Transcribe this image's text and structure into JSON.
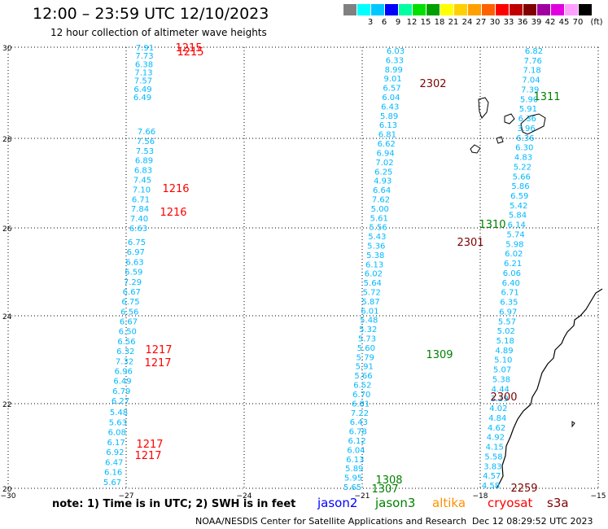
{
  "header": {
    "title": "12:00 – 23:59 UTC 12/10/2023",
    "subtitle": "12 hour collection of altimeter wave heights"
  },
  "legend": {
    "unit": "(ft)",
    "bins": [
      {
        "label": "",
        "color": "#808080"
      },
      {
        "label": "3",
        "color": "#00ffff"
      },
      {
        "label": "6",
        "color": "#00c8ff"
      },
      {
        "label": "9",
        "color": "#0000ff"
      },
      {
        "label": "12",
        "color": "#00ffa0"
      },
      {
        "label": "15",
        "color": "#00e000"
      },
      {
        "label": "18",
        "color": "#00a000"
      },
      {
        "label": "21",
        "color": "#ffff00"
      },
      {
        "label": "24",
        "color": "#ffd000"
      },
      {
        "label": "27",
        "color": "#ffa000"
      },
      {
        "label": "30",
        "color": "#ff6000"
      },
      {
        "label": "33",
        "color": "#ff0000"
      },
      {
        "label": "36",
        "color": "#c00000"
      },
      {
        "label": "39",
        "color": "#800000"
      },
      {
        "label": "42",
        "color": "#a000a0"
      },
      {
        "label": "45",
        "color": "#e000e0"
      },
      {
        "label": "70",
        "color": "#ffa0ff"
      },
      {
        "label": "",
        "color": "#000000"
      }
    ]
  },
  "axes": {
    "lon_ticks": [
      "−30",
      "−27",
      "−24",
      "−21",
      "−18",
      "−15"
    ],
    "lat_ticks": [
      "30",
      "28",
      "26",
      "24",
      "22",
      "20"
    ]
  },
  "tracks": {
    "west_1": {
      "values": [
        "7.91",
        "7.73",
        "6.38",
        "7.13",
        "7.57",
        "6.49",
        "6.49"
      ],
      "color": "#00b8ff"
    },
    "west_2": {
      "values": [
        "7.66",
        "7.56",
        "7.53",
        "6.89",
        "6.83",
        "7.45",
        "7.10",
        "6.71",
        "7.84",
        "7.40",
        "6.63"
      ],
      "color": "#00b8ff"
    },
    "west_3": {
      "values": [
        "6.75",
        "6.97",
        "6.63",
        "6.59",
        "7.29",
        "6.67",
        "6.75",
        "6.56",
        "6.67",
        "6.50",
        "6.56",
        "6.32",
        "7.32",
        "6.96",
        "6.49",
        "6.79",
        "6.27"
      ],
      "color": "#00b8ff"
    },
    "west_4": {
      "values": [
        "5.48",
        "5.63",
        "6.08",
        "6.17",
        "6.92",
        "6.47",
        "6.16",
        "5.67"
      ],
      "color": "#00b8ff"
    },
    "mid_1": {
      "values": [
        "6.03",
        "6.33",
        "8.99",
        "9.01",
        "6.57",
        "6.04",
        "6.43",
        "5.89",
        "6.13",
        "6.81",
        "6.62",
        "6.94",
        "7.02",
        "6.25",
        "4.93",
        "6.64",
        "7.62",
        "5.00",
        "5.61",
        "5.56",
        "5.43",
        "5.36",
        "5.38",
        "6.13",
        "6.02",
        "5.64",
        "5.72",
        "5.87",
        "6.01",
        "5.48",
        "5.32",
        "5.73",
        "5.60",
        "5.79",
        "5.91",
        "5.66",
        "6.52",
        "6.70",
        "6.81",
        "7.22",
        "6.43",
        "6.78",
        "6.12",
        "6.04",
        "6.13",
        "5.89",
        "5.95",
        "5.65"
      ],
      "color": "#00b8ff"
    },
    "mid_2": {
      "values": [
        "6.82",
        "7.76",
        "7.18",
        "7.04",
        "7.39",
        "5.90",
        "5.91",
        "6.36",
        "3.96",
        "6.36",
        "6.30",
        "4.83",
        "5.22",
        "5.66",
        "5.86",
        "6.59",
        "5.42",
        "5.84",
        "6.14",
        "5.74",
        "5.98",
        "6.02",
        "6.21",
        "6.06",
        "6.40",
        "6.71",
        "6.35",
        "6.97",
        "5.57",
        "5.02",
        "5.18",
        "4.89",
        "5.10",
        "5.07",
        "5.38",
        "4.44",
        "3.39",
        "4.02",
        "4.84",
        "4.62",
        "4.92",
        "4.15",
        "5.58",
        "3.83",
        "4.57",
        "4.58"
      ],
      "color": "#00b8ff"
    }
  },
  "time_labels": [
    {
      "text": "1215",
      "color": "#ff0000"
    },
    {
      "text": "1215",
      "color": "#ff0000"
    },
    {
      "text": "1216",
      "color": "#ff0000"
    },
    {
      "text": "1216",
      "color": "#ff0000"
    },
    {
      "text": "1217",
      "color": "#ff0000"
    },
    {
      "text": "1217",
      "color": "#ff0000"
    },
    {
      "text": "1217",
      "color": "#ff0000"
    },
    {
      "text": "1217",
      "color": "#ff0000"
    },
    {
      "text": "2302",
      "color": "#800000"
    },
    {
      "text": "1311",
      "color": "#008000"
    },
    {
      "text": "1310",
      "color": "#008000"
    },
    {
      "text": "2301",
      "color": "#800000"
    },
    {
      "text": "1309",
      "color": "#008000"
    },
    {
      "text": "2300",
      "color": "#800000"
    },
    {
      "text": "1308",
      "color": "#008000"
    },
    {
      "text": "1307",
      "color": "#008000"
    },
    {
      "text": "2259",
      "color": "#800000"
    }
  ],
  "footer": {
    "note": "note:  1) Time is in UTC;  2) SWH is in feet",
    "satellites": [
      {
        "name": "jason2",
        "color": "#0000ff"
      },
      {
        "name": "jason3",
        "color": "#008000"
      },
      {
        "name": "altika",
        "color": "#ff9000"
      },
      {
        "name": "cryosat",
        "color": "#ff0000"
      },
      {
        "name": "s3a",
        "color": "#800000"
      }
    ],
    "credit": "NOAA/NESDIS Center for Satellite Applications and Research",
    "stamp": "Dec 12 08:29:52 UTC 2023"
  }
}
